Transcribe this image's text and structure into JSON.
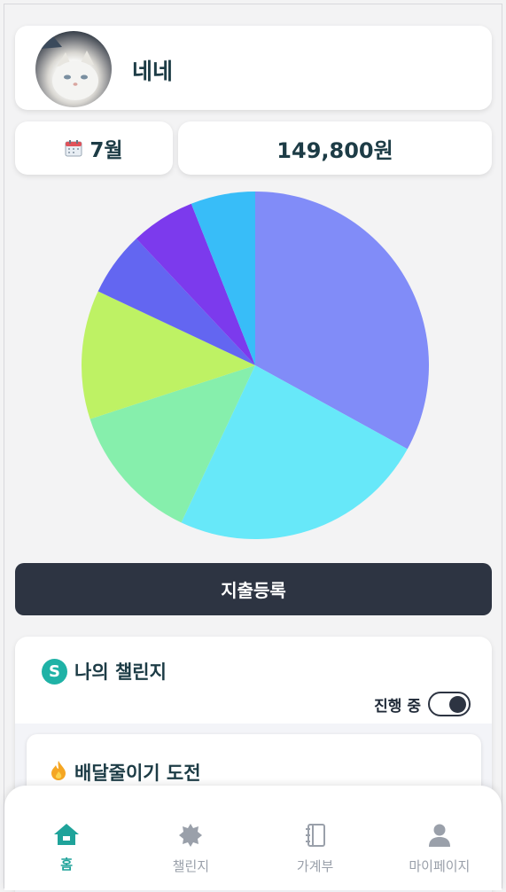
{
  "profile": {
    "name": "네네",
    "avatar_icon": "cat-avatar"
  },
  "summary": {
    "month": "7월",
    "month_icon": "calendar-icon",
    "total": "149,800원"
  },
  "chart_data": {
    "type": "pie",
    "values": [
      33,
      24,
      13,
      12,
      6,
      6,
      6
    ],
    "colors": [
      "#818cf8",
      "#67e8f9",
      "#86efac",
      "#bef264",
      "#6366f1",
      "#7c3aed",
      "#38bdf8"
    ]
  },
  "actions": {
    "register_label": "지출등록"
  },
  "challenge": {
    "title": "나의 챌린지",
    "icon_letter": "S",
    "status_label": "진행 중",
    "toggle_on": true,
    "items": [
      {
        "title": "배달줄이기 도전",
        "icon": "fire-icon"
      }
    ]
  },
  "nav": {
    "items": [
      {
        "label": "홈",
        "icon": "home-icon",
        "active": true
      },
      {
        "label": "챌린지",
        "icon": "badge-icon",
        "active": false
      },
      {
        "label": "가계부",
        "icon": "notebook-icon",
        "active": false
      },
      {
        "label": "마이페이지",
        "icon": "user-icon",
        "active": false
      }
    ]
  }
}
